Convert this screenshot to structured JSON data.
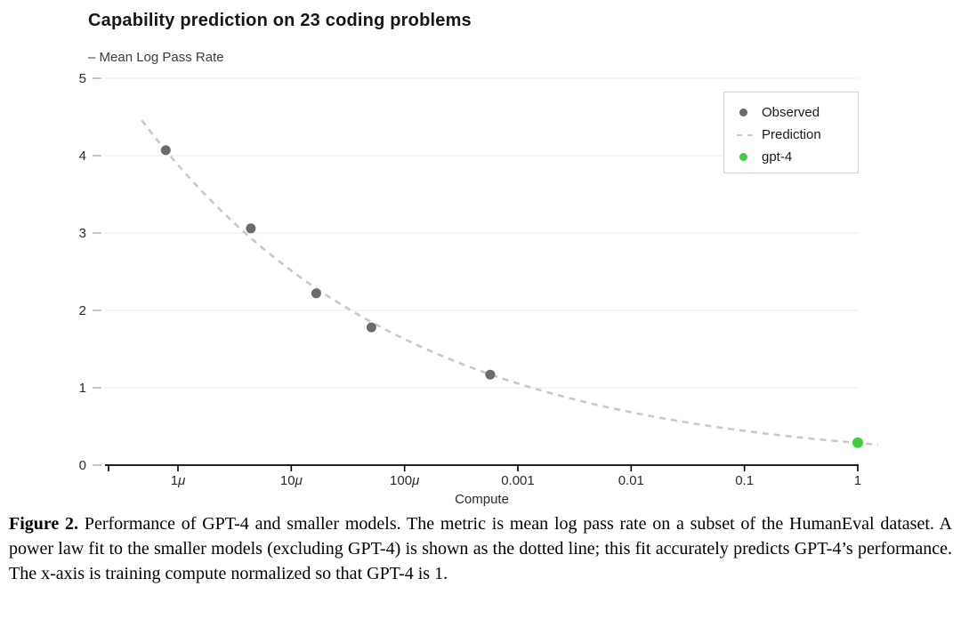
{
  "chart_data": {
    "type": "scatter",
    "title": "Capability prediction on 23 coding problems",
    "subtitle": "– Mean Log Pass Rate",
    "xlabel": "Compute",
    "ylabel": "Mean Log Pass Rate",
    "x_scale": "log10",
    "x_ticks": [
      {
        "value": 1e-06,
        "label": "1μ"
      },
      {
        "value": 1e-05,
        "label": "10μ"
      },
      {
        "value": 0.0001,
        "label": "100μ"
      },
      {
        "value": 0.001,
        "label": "0.001"
      },
      {
        "value": 0.01,
        "label": "0.01"
      },
      {
        "value": 0.1,
        "label": "0.1"
      },
      {
        "value": 1,
        "label": "1"
      }
    ],
    "y_ticks": [
      0,
      1,
      2,
      3,
      4,
      5
    ],
    "ylim": [
      0,
      5
    ],
    "xlim_log10": [
      -6.61,
      0.01
    ],
    "grid": "horizontal-only",
    "colors": {
      "gridline": "#efefef",
      "tick": "#b5b5b5",
      "axis": "#000000",
      "observed": "#6b6b6b",
      "prediction": "#c9c9c9",
      "gpt4": "#3fce3f"
    },
    "series": [
      {
        "name": "Observed",
        "kind": "scatter",
        "color": "#6b6b6b",
        "marker_radius": 5.5,
        "points": [
          {
            "x": 7.8e-07,
            "y": 4.07
          },
          {
            "x": 4.4e-06,
            "y": 3.06
          },
          {
            "x": 1.66e-05,
            "y": 2.22
          },
          {
            "x": 5.1e-05,
            "y": 1.78
          },
          {
            "x": 0.00057,
            "y": 1.17
          }
        ]
      },
      {
        "name": "Prediction",
        "kind": "dashed-line",
        "color": "#c9c9c9",
        "power_law": {
          "coef": 0.287,
          "exponent": -0.1885
        },
        "x_log10_range": [
          -6.32,
          0.19
        ]
      },
      {
        "name": "gpt-4",
        "kind": "scatter",
        "color": "#3fce3f",
        "marker_radius": 6,
        "points": [
          {
            "x": 1,
            "y": 0.29
          }
        ]
      }
    ],
    "legend": {
      "position": "top-right",
      "entries": [
        {
          "label": "Observed",
          "marker": "dot",
          "color": "#6b6b6b"
        },
        {
          "label": "Prediction",
          "marker": "dash",
          "color": "#c9c9c9"
        },
        {
          "label": "gpt-4",
          "marker": "dot",
          "color": "#3fce3f"
        }
      ]
    }
  },
  "figure": {
    "caption_label": "Figure 2.",
    "caption_text": " Performance of GPT-4 and smaller models. The metric is mean log pass rate on a subset of the HumanEval dataset. A power law fit to the smaller models (excluding GPT-4) is shown as the dotted line; this fit accurately predicts GPT-4’s performance. The x-axis is training compute normalized so that GPT-4 is 1."
  }
}
